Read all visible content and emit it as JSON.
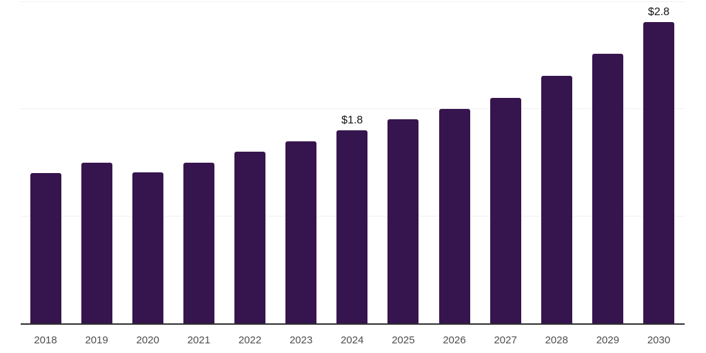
{
  "chart_data": {
    "type": "bar",
    "title": "",
    "xlabel": "",
    "ylabel": "",
    "categories": [
      "2018",
      "2019",
      "2020",
      "2021",
      "2022",
      "2023",
      "2024",
      "2025",
      "2026",
      "2027",
      "2028",
      "2029",
      "2030"
    ],
    "values": [
      1.4,
      1.5,
      1.41,
      1.5,
      1.6,
      1.7,
      1.8,
      1.9,
      2.0,
      2.1,
      2.31,
      2.51,
      2.81
    ],
    "data_labels": {
      "2024": "$1.8",
      "2030": "$2.8"
    },
    "ylim": [
      0,
      3
    ],
    "gridlines_y": [
      1,
      2,
      3
    ],
    "grid": "horizontal-only",
    "legend": "none",
    "colors": {
      "bar": "#36154E",
      "gridline": "#f0f0f0",
      "axis_line": "#2e2e2e",
      "tick_label": "#4d4d4d",
      "data_label": "#111111",
      "background": "#ffffff"
    }
  }
}
